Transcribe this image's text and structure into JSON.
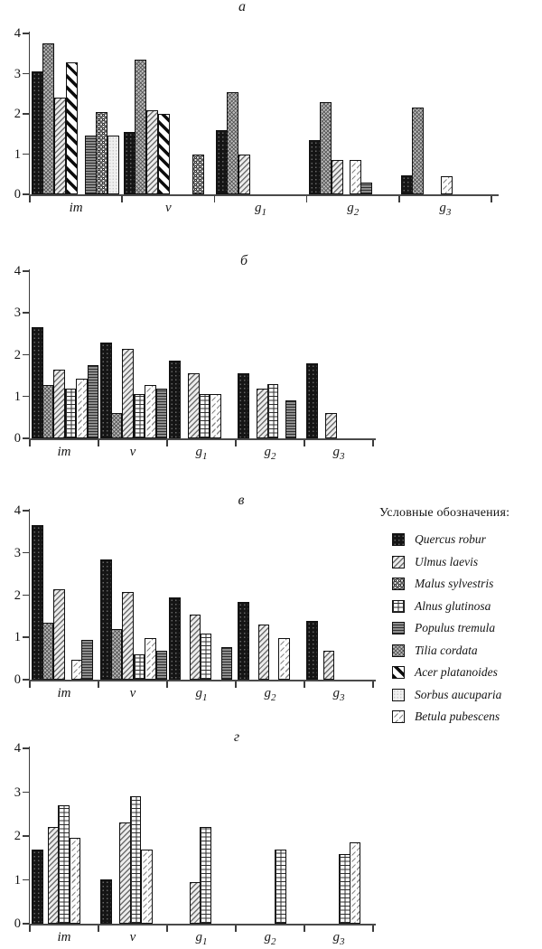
{
  "legend": {
    "title": "Условные обозначения:",
    "items": [
      {
        "key": "quercus",
        "label": "Quercus robur"
      },
      {
        "key": "ulmus",
        "label": "Ulmus laevis"
      },
      {
        "key": "malus",
        "label": "Malus sylvestris"
      },
      {
        "key": "alnus",
        "label": "Alnus glutinosa"
      },
      {
        "key": "populus",
        "label": "Populus tremula"
      },
      {
        "key": "tilia",
        "label": "Tilia cordata"
      },
      {
        "key": "acer",
        "label": "Acer platanoides"
      },
      {
        "key": "sorbus",
        "label": "Sorbus aucuparia"
      },
      {
        "key": "betula",
        "label": "Betula pubescens"
      }
    ]
  },
  "chart_data": [
    {
      "id": "a",
      "type": "bar",
      "title": "а",
      "ylim": [
        0,
        4
      ],
      "yticks": [
        0,
        1,
        2,
        3,
        4
      ],
      "grid": false,
      "legend_position": "right",
      "categories": [
        "im",
        "v",
        "g1",
        "g2",
        "g3"
      ],
      "groups": [
        {
          "category": "im",
          "bars": [
            {
              "species": "quercus",
              "value": 3.05
            },
            {
              "species": "tilia",
              "value": 3.75
            },
            {
              "species": "ulmus",
              "value": 2.4
            },
            {
              "species": "acer",
              "value": 3.28
            },
            {
              "spacer": 0.5
            },
            {
              "species": "populus",
              "value": 1.45
            },
            {
              "species": "malus",
              "value": 2.05
            },
            {
              "species": "sorbus",
              "value": 1.45
            }
          ]
        },
        {
          "category": "v",
          "bars": [
            {
              "species": "quercus",
              "value": 1.55
            },
            {
              "species": "tilia",
              "value": 3.35
            },
            {
              "species": "ulmus",
              "value": 2.1
            },
            {
              "species": "acer",
              "value": 2.0
            },
            {
              "spacer": 1.8
            },
            {
              "species": "malus",
              "value": 1.0
            }
          ]
        },
        {
          "category": "g1",
          "bars": [
            {
              "species": "quercus",
              "value": 1.6
            },
            {
              "species": "tilia",
              "value": 2.55
            },
            {
              "species": "ulmus",
              "value": 1.0
            }
          ]
        },
        {
          "category": "g2",
          "bars": [
            {
              "species": "quercus",
              "value": 1.35
            },
            {
              "species": "tilia",
              "value": 2.3
            },
            {
              "species": "ulmus",
              "value": 0.85
            },
            {
              "spacer": 0.5
            },
            {
              "species": "betula",
              "value": 0.85
            },
            {
              "species": "populus",
              "value": 0.3
            }
          ]
        },
        {
          "category": "g3",
          "bars": [
            {
              "species": "quercus",
              "value": 0.48
            },
            {
              "species": "tilia",
              "value": 2.15
            },
            {
              "spacer": 1.4
            },
            {
              "species": "betula",
              "value": 0.45
            }
          ]
        }
      ]
    },
    {
      "id": "b",
      "type": "bar",
      "title": "б",
      "ylim": [
        0,
        4
      ],
      "yticks": [
        0,
        1,
        2,
        3,
        4
      ],
      "grid": false,
      "categories": [
        "im",
        "v",
        "g1",
        "g2",
        "g3"
      ],
      "groups": [
        {
          "category": "im",
          "bars": [
            {
              "species": "quercus",
              "value": 2.65
            },
            {
              "species": "tilia",
              "value": 1.28
            },
            {
              "species": "ulmus",
              "value": 1.65
            },
            {
              "species": "alnus",
              "value": 1.2
            },
            {
              "species": "betula",
              "value": 1.43
            },
            {
              "species": "populus",
              "value": 1.75
            }
          ]
        },
        {
          "category": "v",
          "bars": [
            {
              "species": "quercus",
              "value": 2.3
            },
            {
              "species": "tilia",
              "value": 0.6
            },
            {
              "species": "ulmus",
              "value": 2.15
            },
            {
              "species": "alnus",
              "value": 1.05
            },
            {
              "species": "betula",
              "value": 1.28
            },
            {
              "species": "populus",
              "value": 1.2
            }
          ]
        },
        {
          "category": "g1",
          "bars": [
            {
              "species": "quercus",
              "value": 1.85
            },
            {
              "spacer": 0.7
            },
            {
              "species": "ulmus",
              "value": 1.55
            },
            {
              "species": "alnus",
              "value": 1.07
            },
            {
              "species": "betula",
              "value": 1.07
            }
          ]
        },
        {
          "category": "g2",
          "bars": [
            {
              "species": "quercus",
              "value": 1.55
            },
            {
              "spacer": 0.7
            },
            {
              "species": "ulmus",
              "value": 1.2
            },
            {
              "species": "alnus",
              "value": 1.3
            },
            {
              "spacer": 0.5
            },
            {
              "species": "populus",
              "value": 0.9
            }
          ]
        },
        {
          "category": "g3",
          "bars": [
            {
              "species": "quercus",
              "value": 1.8
            },
            {
              "spacer": 0.7
            },
            {
              "species": "ulmus",
              "value": 0.6
            }
          ]
        }
      ]
    },
    {
      "id": "c",
      "type": "bar",
      "title": "в",
      "ylim": [
        0,
        4
      ],
      "yticks": [
        0,
        1,
        2,
        3,
        4
      ],
      "grid": false,
      "categories": [
        "im",
        "v",
        "g1",
        "g2",
        "g3"
      ],
      "groups": [
        {
          "category": "im",
          "bars": [
            {
              "species": "quercus",
              "value": 3.65
            },
            {
              "species": "tilia",
              "value": 1.35
            },
            {
              "species": "ulmus",
              "value": 2.15
            },
            {
              "spacer": 0.5
            },
            {
              "species": "betula",
              "value": 0.47
            },
            {
              "species": "populus",
              "value": 0.95
            }
          ]
        },
        {
          "category": "v",
          "bars": [
            {
              "species": "quercus",
              "value": 2.85
            },
            {
              "species": "tilia",
              "value": 1.2
            },
            {
              "species": "ulmus",
              "value": 2.07
            },
            {
              "species": "alnus",
              "value": 0.6
            },
            {
              "species": "betula",
              "value": 0.98
            },
            {
              "species": "populus",
              "value": 0.68
            }
          ]
        },
        {
          "category": "g1",
          "bars": [
            {
              "species": "quercus",
              "value": 1.95
            },
            {
              "spacer": 0.8
            },
            {
              "species": "ulmus",
              "value": 1.55
            },
            {
              "species": "alnus",
              "value": 1.1
            },
            {
              "spacer": 0.8
            },
            {
              "species": "populus",
              "value": 0.78
            }
          ]
        },
        {
          "category": "g2",
          "bars": [
            {
              "species": "quercus",
              "value": 1.85
            },
            {
              "spacer": 0.8
            },
            {
              "species": "ulmus",
              "value": 1.3
            },
            {
              "spacer": 0.8
            },
            {
              "species": "betula",
              "value": 0.98
            }
          ]
        },
        {
          "category": "g3",
          "bars": [
            {
              "species": "quercus",
              "value": 1.4
            },
            {
              "spacer": 0.5
            },
            {
              "species": "ulmus",
              "value": 0.68
            }
          ]
        }
      ]
    },
    {
      "id": "d",
      "type": "bar",
      "title": "г",
      "ylim": [
        0,
        4
      ],
      "yticks": [
        0,
        1,
        2,
        3,
        4
      ],
      "grid": false,
      "categories": [
        "im",
        "v",
        "g1",
        "g2",
        "g3"
      ],
      "groups": [
        {
          "category": "im",
          "bars": [
            {
              "species": "quercus",
              "value": 1.7
            },
            {
              "spacer": 0.4
            },
            {
              "species": "ulmus",
              "value": 2.2
            },
            {
              "species": "alnus",
              "value": 2.7
            },
            {
              "species": "betula",
              "value": 1.95
            }
          ]
        },
        {
          "category": "v",
          "bars": [
            {
              "species": "quercus",
              "value": 1.02
            },
            {
              "spacer": 0.7
            },
            {
              "species": "ulmus",
              "value": 2.3
            },
            {
              "species": "alnus",
              "value": 2.9
            },
            {
              "species": "betula",
              "value": 1.7
            }
          ]
        },
        {
          "category": "g1",
          "bars": [
            {
              "spacer": 1.8
            },
            {
              "species": "ulmus",
              "value": 0.95
            },
            {
              "species": "alnus",
              "value": 2.2
            }
          ]
        },
        {
          "category": "g2",
          "bars": [
            {
              "spacer": 3.3
            },
            {
              "species": "alnus",
              "value": 1.7
            }
          ]
        },
        {
          "category": "g3",
          "bars": [
            {
              "spacer": 2.9
            },
            {
              "species": "alnus",
              "value": 1.58
            },
            {
              "species": "betula",
              "value": 1.85
            }
          ]
        }
      ]
    }
  ]
}
